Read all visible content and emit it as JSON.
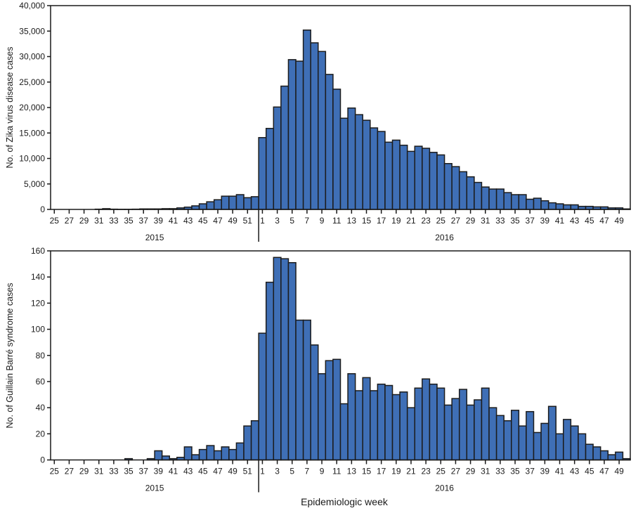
{
  "chart_data": [
    {
      "type": "bar",
      "ylabel": "No. of Zika virus disease cases",
      "ylim": [
        0,
        40000
      ],
      "yticks": [
        "0",
        "5,000",
        "10,000",
        "15,000",
        "20,000",
        "25,000",
        "30,000",
        "35,000",
        "40,000"
      ],
      "year_groups": [
        {
          "label": "2015",
          "weeks": [
            25,
            26,
            27,
            28,
            29,
            30,
            31,
            32,
            33,
            34,
            35,
            36,
            37,
            38,
            39,
            40,
            41,
            42,
            43,
            44,
            45,
            46,
            47,
            48,
            49,
            50,
            51,
            52
          ]
        },
        {
          "label": "2016",
          "weeks": [
            1,
            2,
            3,
            4,
            5,
            6,
            7,
            8,
            9,
            10,
            11,
            12,
            13,
            14,
            15,
            16,
            17,
            18,
            19,
            20,
            21,
            22,
            23,
            24,
            25,
            26,
            27,
            28,
            29,
            30,
            31,
            32,
            33,
            34,
            35,
            36,
            37,
            38,
            39,
            40,
            41,
            42,
            43,
            44,
            45,
            46,
            47,
            48,
            49,
            50
          ]
        }
      ],
      "values": [
        0,
        0,
        0,
        0,
        0,
        0,
        50,
        150,
        50,
        30,
        30,
        50,
        100,
        100,
        100,
        150,
        150,
        300,
        450,
        700,
        1100,
        1500,
        1900,
        2600,
        2600,
        2900,
        2300,
        2500,
        14100,
        15900,
        20100,
        24200,
        29400,
        29100,
        35200,
        32700,
        31000,
        26500,
        23600,
        17900,
        19900,
        18600,
        17500,
        16000,
        15300,
        13200,
        13600,
        12600,
        11400,
        12400,
        12000,
        11200,
        10700,
        9000,
        8400,
        7400,
        6400,
        5300,
        4400,
        4000,
        4000,
        3300,
        2900,
        2900,
        2000,
        2200,
        1700,
        1300,
        1100,
        900,
        900,
        600,
        600,
        500,
        500,
        300,
        300,
        100
      ]
    },
    {
      "type": "bar",
      "ylabel": "No. of Guillain Barré syndrome cases",
      "xlabel": "Epidemiologic week",
      "ylim": [
        0,
        160
      ],
      "yticks": [
        "0",
        "20",
        "40",
        "60",
        "80",
        "100",
        "120",
        "140",
        "160"
      ],
      "year_groups": [
        {
          "label": "2015",
          "weeks": [
            25,
            26,
            27,
            28,
            29,
            30,
            31,
            32,
            33,
            34,
            35,
            36,
            37,
            38,
            39,
            40,
            41,
            42,
            43,
            44,
            45,
            46,
            47,
            48,
            49,
            50,
            51,
            52
          ]
        },
        {
          "label": "2016",
          "weeks": [
            1,
            2,
            3,
            4,
            5,
            6,
            7,
            8,
            9,
            10,
            11,
            12,
            13,
            14,
            15,
            16,
            17,
            18,
            19,
            20,
            21,
            22,
            23,
            24,
            25,
            26,
            27,
            28,
            29,
            30,
            31,
            32,
            33,
            34,
            35,
            36,
            37,
            38,
            39,
            40,
            41,
            42,
            43,
            44,
            45,
            46,
            47,
            48,
            49,
            50
          ]
        }
      ],
      "values": [
        0,
        0,
        0,
        0,
        0,
        0,
        0,
        0,
        0,
        0,
        1,
        0,
        0,
        1,
        7,
        3,
        1,
        2,
        10,
        4,
        8,
        11,
        7,
        10,
        8,
        13,
        26,
        30,
        97,
        136,
        155,
        154,
        151,
        107,
        107,
        88,
        66,
        76,
        77,
        43,
        66,
        53,
        63,
        53,
        58,
        57,
        50,
        52,
        40,
        55,
        62,
        58,
        55,
        42,
        47,
        54,
        42,
        46,
        55,
        40,
        34,
        30,
        38,
        26,
        37,
        21,
        28,
        41,
        20,
        31,
        26,
        20,
        12,
        10,
        7,
        4,
        6,
        1
      ]
    }
  ],
  "colors": {
    "bar_fill": "#3f6fb6",
    "bar_stroke": "#1c1c1c",
    "axis": "#1a1a1a"
  }
}
